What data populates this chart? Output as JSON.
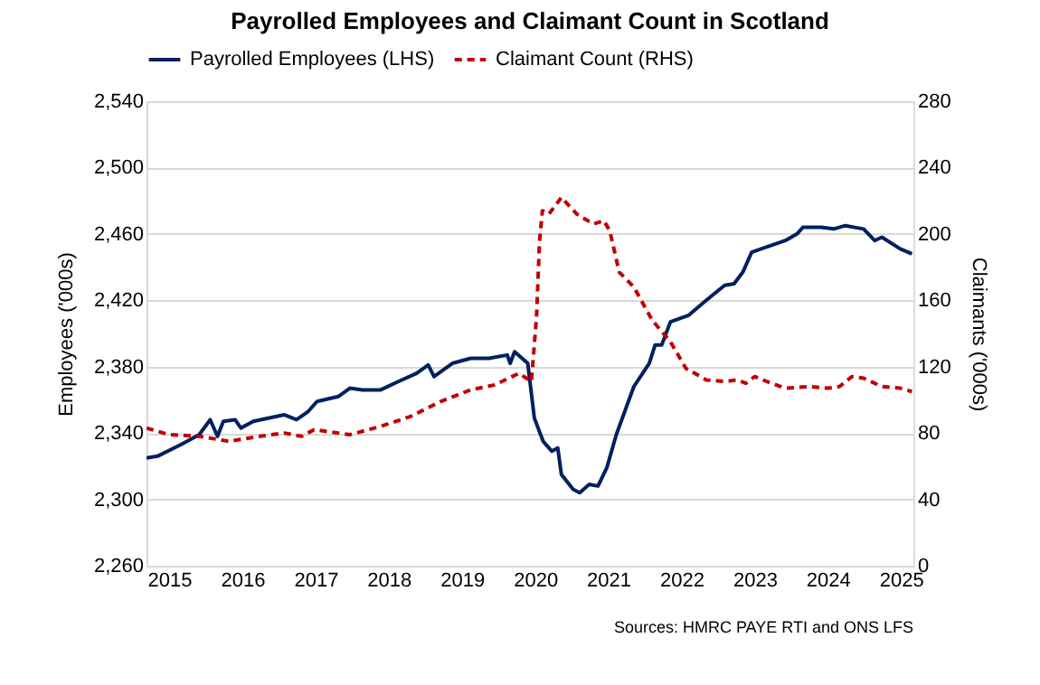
{
  "chart_data": {
    "type": "line",
    "title": "Payrolled Employees and Claimant Count in Scotland",
    "xlabel": null,
    "ylabel": "Employees ('000s)",
    "y2label": "Claimants ('000s)",
    "xlim": [
      2014.69,
      2025.17
    ],
    "xticks": [
      2015,
      2016,
      2017,
      2018,
      2019,
      2020,
      2021,
      2022,
      2023,
      2024,
      2025
    ],
    "ylim": [
      2260,
      2540
    ],
    "yticks": [
      {
        "value": 2260,
        "label": "2,260"
      },
      {
        "value": 2300,
        "label": "2,300"
      },
      {
        "value": 2340,
        "label": "2,340"
      },
      {
        "value": 2380,
        "label": "2,380"
      },
      {
        "value": 2420,
        "label": "2,420"
      },
      {
        "value": 2460,
        "label": "2,460"
      },
      {
        "value": 2500,
        "label": "2,500"
      },
      {
        "value": 2540,
        "label": "2,540"
      }
    ],
    "y2lim": [
      0,
      280
    ],
    "y2ticks": [
      0,
      40,
      80,
      120,
      160,
      200,
      240,
      280
    ],
    "grid": "y",
    "legend": "top",
    "marker": "none",
    "annotations": [
      "Sources: HMRC PAYE RTI and ONS LFS"
    ],
    "series": [
      {
        "name": "Payrolled Employees (LHS)",
        "color": "#002060",
        "line_style": "solid",
        "axis": "y",
        "x": [
          2014.69,
          2014.84,
          2015.16,
          2015.41,
          2015.56,
          2015.66,
          2015.74,
          2015.9,
          2015.98,
          2016.15,
          2016.57,
          2016.74,
          2016.9,
          2017.02,
          2017.31,
          2017.47,
          2017.64,
          2017.89,
          2018.13,
          2018.38,
          2018.54,
          2018.62,
          2018.87,
          2019.12,
          2019.37,
          2019.62,
          2019.66,
          2019.72,
          2019.9,
          2019.99,
          2020.11,
          2020.23,
          2020.31,
          2020.36,
          2020.52,
          2020.61,
          2020.74,
          2020.86,
          2020.98,
          2021.11,
          2021.35,
          2021.56,
          2021.64,
          2021.73,
          2021.85,
          2022.1,
          2022.34,
          2022.59,
          2022.72,
          2022.84,
          2022.96,
          2023.09,
          2023.42,
          2023.58,
          2023.66,
          2023.91,
          2024.08,
          2024.24,
          2024.49,
          2024.64,
          2024.74,
          2024.99,
          2025.15
        ],
        "values": [
          2325,
          2326,
          2333,
          2339,
          2348,
          2338,
          2347,
          2348,
          2343,
          2347,
          2351,
          2348,
          2353,
          2359,
          2362,
          2367,
          2366,
          2366,
          2371,
          2376,
          2381,
          2374,
          2382,
          2385,
          2385,
          2387,
          2382,
          2389,
          2382,
          2349,
          2335,
          2329,
          2331,
          2315,
          2306,
          2304,
          2309,
          2308,
          2319,
          2339,
          2368,
          2382,
          2393,
          2393,
          2407,
          2411,
          2420,
          2429,
          2430,
          2437,
          2449,
          2451,
          2456,
          2460,
          2464,
          2464,
          2463,
          2465,
          2463,
          2456,
          2458,
          2451,
          2448
        ]
      },
      {
        "name": "Claimant Count (RHS)",
        "color": "#c00000",
        "line_style": "dashed",
        "axis": "y2",
        "x": [
          2014.69,
          2015.0,
          2015.41,
          2015.82,
          2016.24,
          2016.57,
          2016.81,
          2016.98,
          2017.47,
          2017.89,
          2018.3,
          2018.71,
          2019.12,
          2019.45,
          2019.78,
          2019.95,
          2020.02,
          2020.06,
          2020.1,
          2020.19,
          2020.36,
          2020.57,
          2020.64,
          2020.8,
          2020.94,
          2021.02,
          2021.15,
          2021.35,
          2021.6,
          2021.85,
          2022.06,
          2022.34,
          2022.59,
          2022.76,
          2022.88,
          2023.0,
          2023.17,
          2023.42,
          2023.75,
          2024.0,
          2024.16,
          2024.33,
          2024.49,
          2024.74,
          2024.99,
          2025.15
        ],
        "values": [
          83,
          79,
          78,
          75,
          78,
          80,
          78,
          82,
          79,
          84,
          90,
          99,
          106,
          109,
          116,
          111,
          150,
          195,
          214,
          212,
          222,
          212,
          210,
          206,
          208,
          202,
          177,
          168,
          148,
          135,
          119,
          112,
          111,
          112,
          110,
          114,
          111,
          107,
          108,
          107,
          108,
          114,
          113,
          108,
          107,
          105
        ]
      }
    ]
  }
}
